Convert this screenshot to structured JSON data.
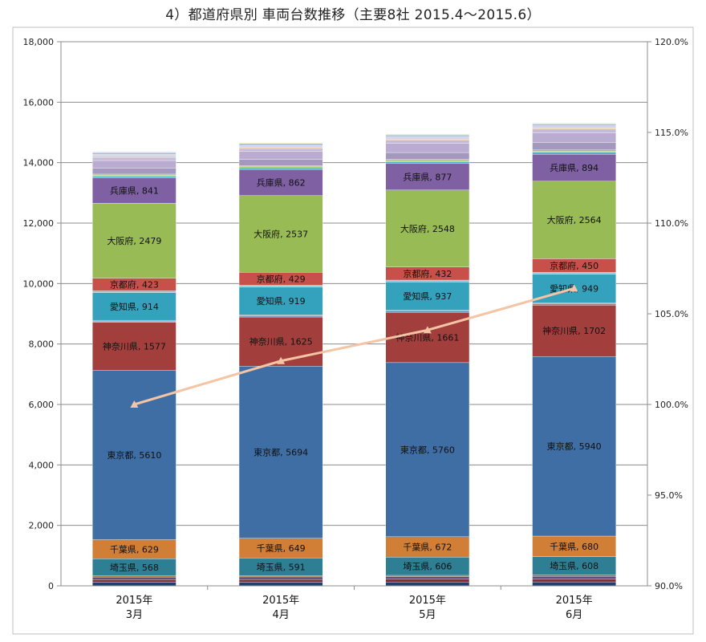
{
  "title": "4）都道府県別 車両台数推移（主要8社 2015.4〜2015.6）",
  "chart_data": {
    "type": "bar",
    "stacked": true,
    "categories": [
      [
        "2015年",
        "3月"
      ],
      [
        "2015年",
        "4月"
      ],
      [
        "2015年",
        "5月"
      ],
      [
        "2015年",
        "6月"
      ]
    ],
    "y_left": {
      "min": 0,
      "max": 18000,
      "step": 2000,
      "ticks": [
        "0",
        "2,000",
        "4,000",
        "6,000",
        "8,000",
        "10,000",
        "12,000",
        "14,000",
        "16,000",
        "18,000"
      ]
    },
    "y_right": {
      "min": 90,
      "max": 120,
      "step": 5,
      "ticks": [
        "90.0%",
        "95.0%",
        "100.0%",
        "105.0%",
        "110.0%",
        "115.0%",
        "120.0%"
      ]
    },
    "grid": true,
    "series": [
      {
        "color": "#1f3f6e",
        "values": [
          120,
          120,
          125,
          130
        ]
      },
      {
        "color": "#7a3336",
        "values": [
          90,
          92,
          95,
          98
        ]
      },
      {
        "color": "#5a4a7c",
        "values": [
          80,
          82,
          84,
          86
        ]
      },
      {
        "color": "#9e6a2c",
        "values": [
          40,
          40,
          42,
          44
        ]
      },
      {
        "name": "埼玉県",
        "color": "#2e7f94",
        "values": [
          568,
          591,
          606,
          608
        ]
      },
      {
        "name": "千葉県",
        "color": "#d17e36",
        "values": [
          629,
          649,
          672,
          680
        ]
      },
      {
        "name": "東京都",
        "color": "#3f6ea5",
        "values": [
          5610,
          5694,
          5760,
          5940
        ]
      },
      {
        "name": "神奈川県",
        "color": "#a23f3d",
        "values": [
          1577,
          1625,
          1661,
          1702
        ]
      },
      {
        "color": "#6a8fb9",
        "values": [
          40,
          40,
          40,
          40
        ]
      },
      {
        "color": "#b07a7a",
        "values": [
          30,
          30,
          30,
          30
        ]
      },
      {
        "name": "愛知県",
        "color": "#35a2bd",
        "values": [
          914,
          919,
          937,
          949
        ]
      },
      {
        "color": "#8ec2d1",
        "values": [
          60,
          62,
          62,
          64
        ]
      },
      {
        "name": "京都府",
        "color": "#c8504b",
        "values": [
          423,
          429,
          432,
          450
        ]
      },
      {
        "name": "大阪府",
        "color": "#99bb55",
        "values": [
          2479,
          2537,
          2548,
          2564
        ]
      },
      {
        "name": "兵庫県",
        "color": "#7e60a3",
        "values": [
          841,
          862,
          877,
          894
        ]
      },
      {
        "color": "#43b0c6",
        "values": [
          50,
          55,
          58,
          60
        ]
      },
      {
        "color": "#a6c96a",
        "values": [
          40,
          42,
          44,
          46
        ]
      },
      {
        "color": "#d79089",
        "values": [
          30,
          30,
          32,
          34
        ]
      },
      {
        "color": "#a598bf",
        "values": [
          200,
          210,
          230,
          250
        ]
      },
      {
        "color": "#b9acd0",
        "values": [
          250,
          260,
          300,
          320
        ]
      },
      {
        "color": "#c4bcd6",
        "values": [
          100,
          100,
          110,
          120
        ]
      },
      {
        "color": "#e8c09a",
        "values": [
          40,
          40,
          40,
          40
        ]
      },
      {
        "color": "#d8d0e6",
        "values": [
          60,
          60,
          70,
          70
        ]
      },
      {
        "color": "#9fc0e0",
        "values": [
          60,
          60,
          60,
          60
        ]
      },
      {
        "color": "#f1e3b1",
        "values": [
          30,
          30,
          30,
          30
        ]
      }
    ],
    "line": {
      "axis": "right",
      "color": "#f4c4a4",
      "values": [
        100.0,
        102.4,
        104.1,
        106.4
      ]
    }
  }
}
